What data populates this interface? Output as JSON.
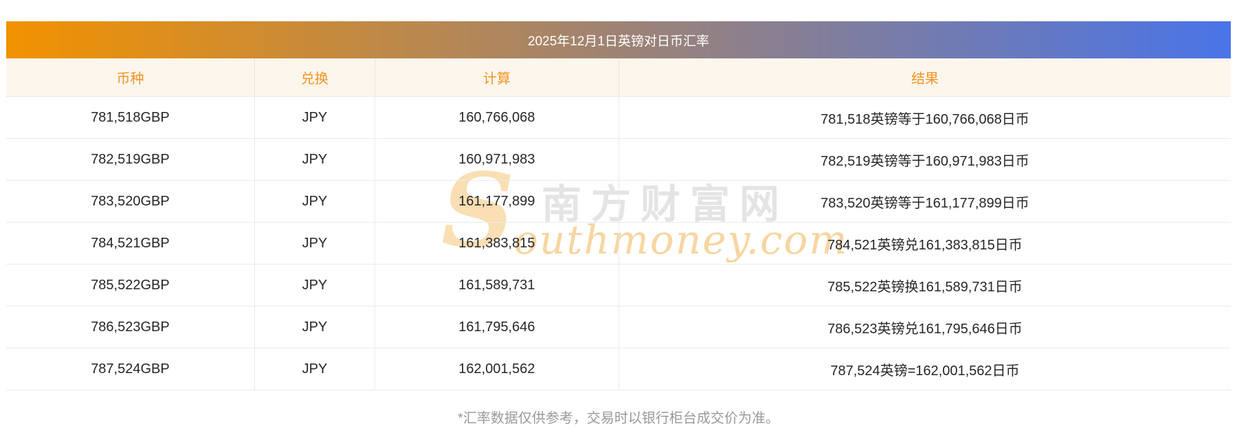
{
  "page": {
    "title": "2025年12月1日英镑对日币汇率",
    "footnote": "*汇率数据仅供参考，交易时以银行柜台成交价为准。"
  },
  "table": {
    "headers": {
      "currency": "币种",
      "exchange": "兑换",
      "calculation": "计算",
      "result": "结果"
    },
    "rows": [
      {
        "currency": "781,518GBP",
        "exchange": "JPY",
        "calculation": "160,766,068",
        "result": "781,518英镑等于160,766,068日币"
      },
      {
        "currency": "782,519GBP",
        "exchange": "JPY",
        "calculation": "160,971,983",
        "result": "782,519英镑等于160,971,983日币"
      },
      {
        "currency": "783,520GBP",
        "exchange": "JPY",
        "calculation": "161,177,899",
        "result": "783,520英镑等于161,177,899日币"
      },
      {
        "currency": "784,521GBP",
        "exchange": "JPY",
        "calculation": "161,383,815",
        "result": "784,521英镑兑161,383,815日币"
      },
      {
        "currency": "785,522GBP",
        "exchange": "JPY",
        "calculation": "161,589,731",
        "result": "785,522英镑换161,589,731日币"
      },
      {
        "currency": "786,523GBP",
        "exchange": "JPY",
        "calculation": "161,795,646",
        "result": "786,523英镑兑161,795,646日币"
      },
      {
        "currency": "787,524GBP",
        "exchange": "JPY",
        "calculation": "162,001,562",
        "result": "787,524英镑=162,001,562日币"
      }
    ]
  },
  "watermark": {
    "site_name_cn": "南方财富网",
    "site_name_en_initial": "S",
    "site_name_en_rest": "outhmoney.com"
  },
  "colors": {
    "gradient_start": "#F29200",
    "gradient_end": "#4A74E8",
    "accent_orange": "#F39422",
    "header_bg": "#FDF6ED",
    "watermark_gray": "#E4E4E4",
    "watermark_orange": "#F8D5A1"
  }
}
